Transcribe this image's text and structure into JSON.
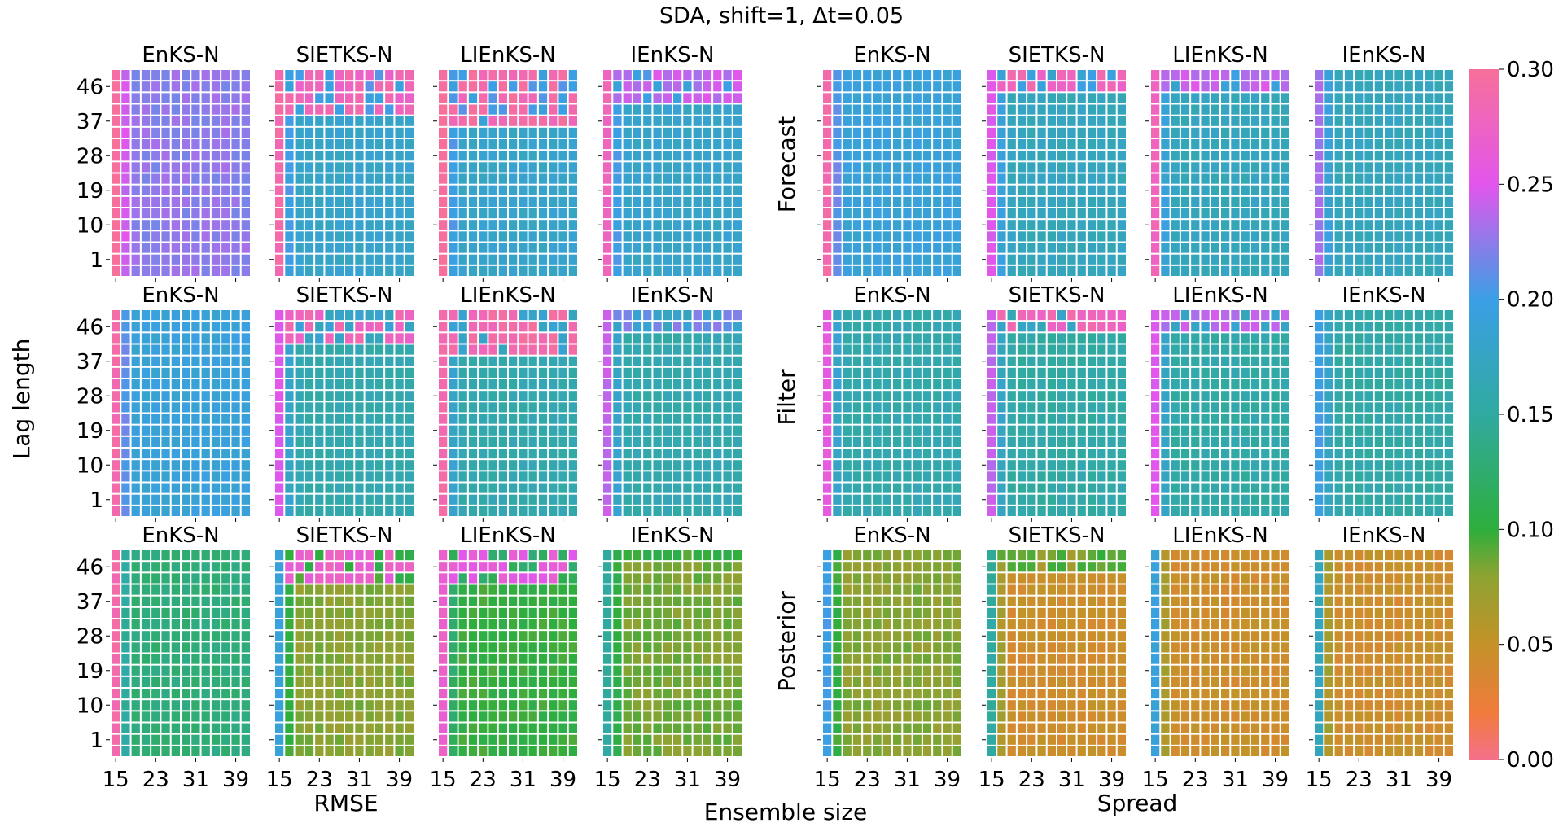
{
  "chart_data": {
    "type": "heatmap",
    "title": "SDA, shift=1, Δt=0.05",
    "xlabel": "Ensemble size",
    "ylabel": "Lag length",
    "x_range": [
      15,
      42
    ],
    "y_range": [
      1,
      51
    ],
    "x_ticks": [
      "15",
      "23",
      "31",
      "39"
    ],
    "y_ticks": [
      "46",
      "37",
      "28",
      "19",
      "10",
      "1"
    ],
    "group_labels": {
      "left": "RMSE",
      "right": "Spread"
    },
    "row_labels": [
      "Forecast",
      "Filter",
      "Posterior"
    ],
    "panel_titles": [
      "EnKS-N",
      "SIETKS-N",
      "LIEnKS-N",
      "IEnKS-N"
    ],
    "colorbar": {
      "ticks": [
        "0.00",
        "0.05",
        "0.10",
        "0.15",
        "0.20",
        "0.25",
        "0.30"
      ],
      "vmin": 0.0,
      "vmax": 0.3,
      "stops": [
        {
          "v": 0.0,
          "c": "#f5708a"
        },
        {
          "v": 0.02,
          "c": "#f07a3c"
        },
        {
          "v": 0.05,
          "c": "#c49228"
        },
        {
          "v": 0.08,
          "c": "#8ca332"
        },
        {
          "v": 0.1,
          "c": "#2eae3c"
        },
        {
          "v": 0.15,
          "c": "#30aaa0"
        },
        {
          "v": 0.2,
          "c": "#3b9fe6"
        },
        {
          "v": 0.25,
          "c": "#e256ec"
        },
        {
          "v": 0.3,
          "c": "#f7709a"
        }
      ]
    },
    "panels": [
      {
        "title": "EnKS-N",
        "group": "RMSE",
        "row": "Forecast",
        "base": 0.225,
        "first_col": 0.3,
        "top": 0.23,
        "top_rows": 0
      },
      {
        "title": "SIETKS-N",
        "group": "RMSE",
        "row": "Forecast",
        "base": 0.18,
        "first_col": 0.29,
        "top": 0.28,
        "top_rows": 4
      },
      {
        "title": "LIEnKS-N",
        "group": "RMSE",
        "row": "Forecast",
        "base": 0.18,
        "first_col": 0.3,
        "top": 0.29,
        "top_rows": 5
      },
      {
        "title": "IEnKS-N",
        "group": "RMSE",
        "row": "Forecast",
        "base": 0.18,
        "first_col": 0.28,
        "top": 0.24,
        "top_rows": 3
      },
      {
        "title": "EnKS-N",
        "group": "Spread",
        "row": "Forecast",
        "base": 0.19,
        "first_col": 0.29,
        "top": 0.19,
        "top_rows": 0
      },
      {
        "title": "SIETKS-N",
        "group": "Spread",
        "row": "Forecast",
        "base": 0.17,
        "first_col": 0.25,
        "top": 0.28,
        "top_rows": 2
      },
      {
        "title": "LIEnKS-N",
        "group": "Spread",
        "row": "Forecast",
        "base": 0.17,
        "first_col": 0.28,
        "top": 0.24,
        "top_rows": 2
      },
      {
        "title": "IEnKS-N",
        "group": "Spread",
        "row": "Forecast",
        "base": 0.17,
        "first_col": 0.23,
        "top": 0.17,
        "top_rows": 0
      },
      {
        "title": "EnKS-N",
        "group": "RMSE",
        "row": "Filter",
        "base": 0.19,
        "first_col": 0.29,
        "top": 0.21,
        "top_rows": 0
      },
      {
        "title": "SIETKS-N",
        "group": "RMSE",
        "row": "Filter",
        "base": 0.16,
        "first_col": 0.25,
        "top": 0.28,
        "top_rows": 3
      },
      {
        "title": "LIEnKS-N",
        "group": "RMSE",
        "row": "Filter",
        "base": 0.16,
        "first_col": 0.29,
        "top": 0.29,
        "top_rows": 4
      },
      {
        "title": "IEnKS-N",
        "group": "RMSE",
        "row": "Filter",
        "base": 0.16,
        "first_col": 0.24,
        "top": 0.22,
        "top_rows": 2
      },
      {
        "title": "EnKS-N",
        "group": "Spread",
        "row": "Filter",
        "base": 0.16,
        "first_col": 0.26,
        "top": 0.16,
        "top_rows": 0
      },
      {
        "title": "SIETKS-N",
        "group": "Spread",
        "row": "Filter",
        "base": 0.155,
        "first_col": 0.24,
        "top": 0.28,
        "top_rows": 2
      },
      {
        "title": "LIEnKS-N",
        "group": "Spread",
        "row": "Filter",
        "base": 0.155,
        "first_col": 0.25,
        "top": 0.24,
        "top_rows": 2
      },
      {
        "title": "IEnKS-N",
        "group": "Spread",
        "row": "Filter",
        "base": 0.155,
        "first_col": 0.2,
        "top": 0.155,
        "top_rows": 0
      },
      {
        "title": "EnKS-N",
        "group": "RMSE",
        "row": "Posterior",
        "base": 0.13,
        "first_col": 0.29,
        "top": 0.14,
        "top_rows": 0
      },
      {
        "title": "SIETKS-N",
        "group": "RMSE",
        "row": "Posterior",
        "base": 0.08,
        "first_col": 0.19,
        "top": 0.27,
        "top_rows": 3
      },
      {
        "title": "LIEnKS-N",
        "group": "RMSE",
        "row": "Posterior",
        "base": 0.1,
        "first_col": 0.27,
        "top": 0.26,
        "top_rows": 3
      },
      {
        "title": "IEnKS-N",
        "group": "RMSE",
        "row": "Posterior",
        "base": 0.085,
        "first_col": 0.15,
        "top": 0.1,
        "top_rows": 1
      },
      {
        "title": "EnKS-N",
        "group": "Spread",
        "row": "Posterior",
        "base": 0.08,
        "first_col": 0.2,
        "top": 0.08,
        "top_rows": 0
      },
      {
        "title": "SIETKS-N",
        "group": "Spread",
        "row": "Posterior",
        "base": 0.045,
        "first_col": 0.15,
        "top": 0.09,
        "top_rows": 2
      },
      {
        "title": "LIEnKS-N",
        "group": "Spread",
        "row": "Posterior",
        "base": 0.045,
        "first_col": 0.19,
        "top": 0.045,
        "top_rows": 0
      },
      {
        "title": "IEnKS-N",
        "group": "Spread",
        "row": "Posterior",
        "base": 0.045,
        "first_col": 0.17,
        "top": 0.045,
        "top_rows": 0
      }
    ]
  }
}
